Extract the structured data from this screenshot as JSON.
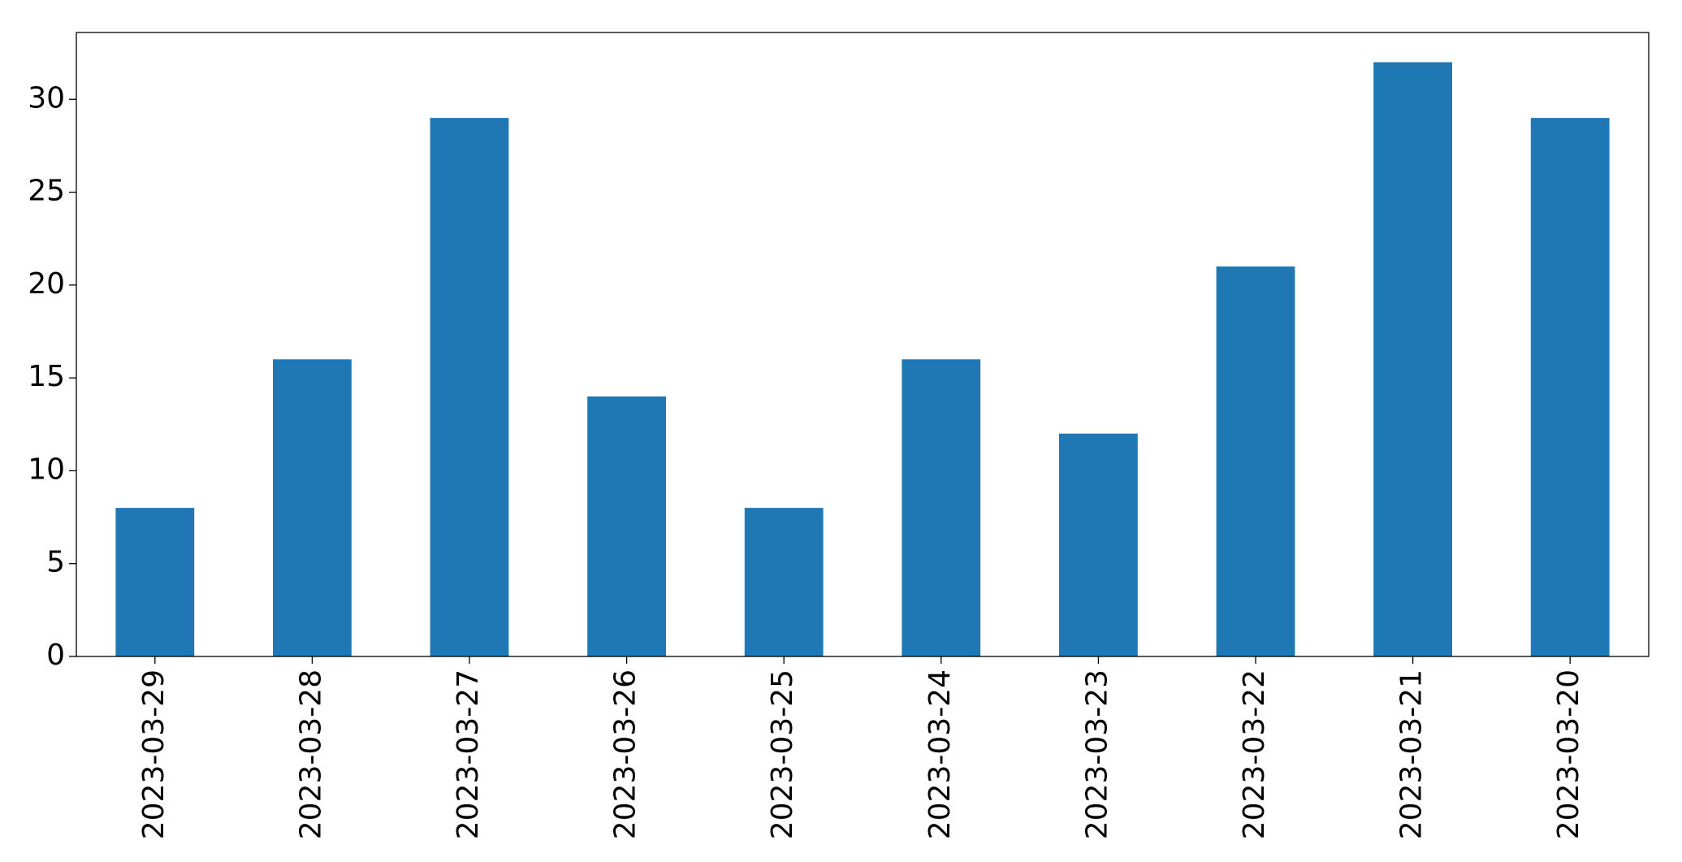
{
  "chart_data": {
    "type": "bar",
    "categories": [
      "2023-03-29",
      "2023-03-28",
      "2023-03-27",
      "2023-03-26",
      "2023-03-25",
      "2023-03-24",
      "2023-03-23",
      "2023-03-22",
      "2023-03-21",
      "2023-03-20"
    ],
    "values": [
      8,
      16,
      29,
      14,
      8,
      16,
      12,
      21,
      32,
      29
    ],
    "color": "#1f77b4",
    "ylim": [
      0,
      33.6
    ],
    "yticks": [
      0,
      5,
      10,
      15,
      20,
      25,
      30
    ],
    "grid": false
  }
}
